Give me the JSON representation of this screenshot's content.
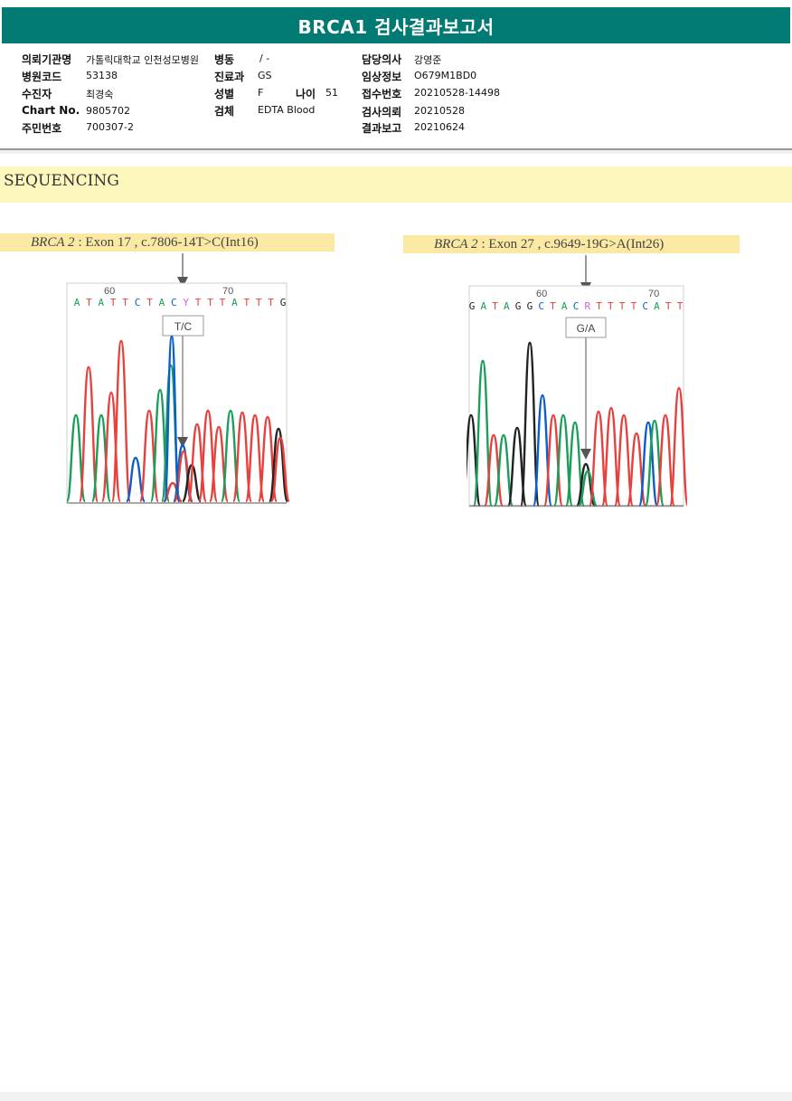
{
  "title": "BRCA1 검사결과보고서",
  "info": {
    "hospital_label": "의뢰기관명",
    "hospital_value": "가톨릭대학교 인천성모병원",
    "ward_label": "병동",
    "ward_value": "/ -",
    "doctor_label": "담당의사",
    "doctor_value": "강영준",
    "hospcode_label": "병원코드",
    "hospcode_value": "53138",
    "dept_label": "진료과",
    "dept_value": "GS",
    "clinical_label": "임상정보",
    "clinical_value": "O679M1BD0",
    "patient_label": "수진자",
    "patient_value": "최경숙",
    "sex_label": "성별",
    "sex_value": "F",
    "age_label": "나이",
    "age_value": "51",
    "receipt_label": "접수번호",
    "receipt_value": "20210528-14498",
    "chart_label": "Chart No.",
    "chart_value": "9805702",
    "specimen_label": "검체",
    "specimen_value": "EDTA Blood",
    "request_label": "검사의뢰",
    "request_value": "20210528",
    "resident_label": "주민번호",
    "resident_value": "700307-2",
    "report_label": "결과보고",
    "report_value": "20210624"
  },
  "section_title": "SEQUENCING",
  "colors": {
    "A": "#1a9e5a",
    "C": "#0a5fc8",
    "G": "#222222",
    "T": "#e8403c",
    "header": "#007a73",
    "highlight": "#fbe9a3"
  },
  "variants": [
    {
      "gene": "BRCA 2",
      "detail": ": Exon 17 , c.7806-14T>C(Int16)",
      "tick_labels": [
        "60",
        "70"
      ],
      "sequence": "ATATTCTACYTTTATTTG",
      "call": "T/C"
    },
    {
      "gene": "BRCA 2",
      "detail": ": Exon 27 , c.9649-19G>A(Int26)",
      "tick_labels": [
        "60",
        "70"
      ],
      "sequence": "GATAGGCTACRTTTTCATT",
      "call": "G/A"
    }
  ]
}
